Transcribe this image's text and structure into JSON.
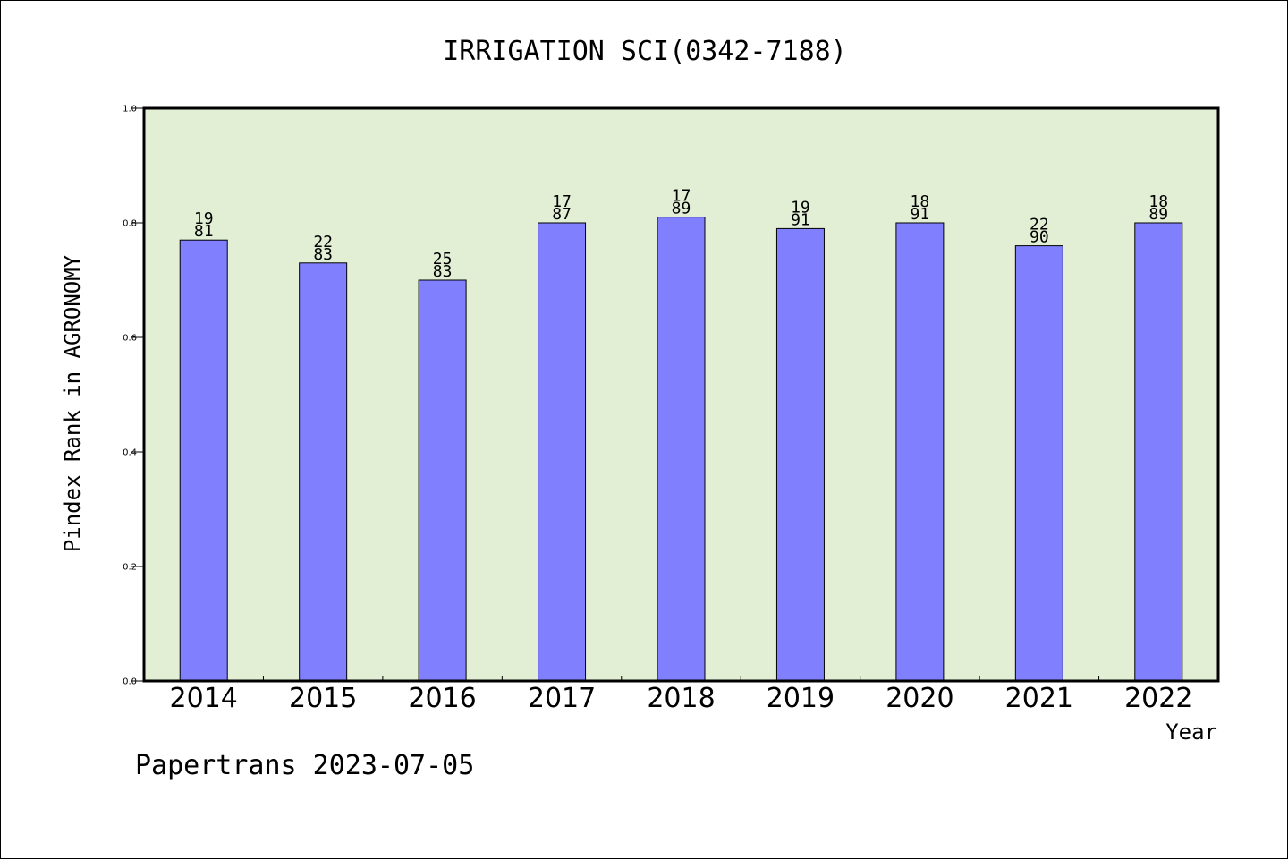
{
  "chart_data": {
    "type": "bar",
    "title": "IRRIGATION SCI(0342-7188)",
    "xlabel": "Year",
    "ylabel": "Pindex Rank in AGRONOMY",
    "ylim": [
      0,
      1.0
    ],
    "yticks": [
      "0.0",
      "0.2",
      "0.4",
      "0.6",
      "0.8",
      "1.0"
    ],
    "categories": [
      "2014",
      "2015",
      "2016",
      "2017",
      "2018",
      "2019",
      "2020",
      "2021",
      "2022"
    ],
    "values": [
      0.77,
      0.73,
      0.7,
      0.8,
      0.81,
      0.79,
      0.8,
      0.76,
      0.8
    ],
    "labels_top": [
      "19",
      "22",
      "25",
      "17",
      "17",
      "19",
      "18",
      "22",
      "18"
    ],
    "labels_bottom": [
      "81",
      "83",
      "83",
      "87",
      "89",
      "91",
      "91",
      "90",
      "89"
    ],
    "grid": false,
    "colors": {
      "bar": "#8080ff",
      "plot_background": "#e2efd5",
      "bar_edge": "#000000"
    }
  },
  "footer": "Papertrans 2023-07-05"
}
